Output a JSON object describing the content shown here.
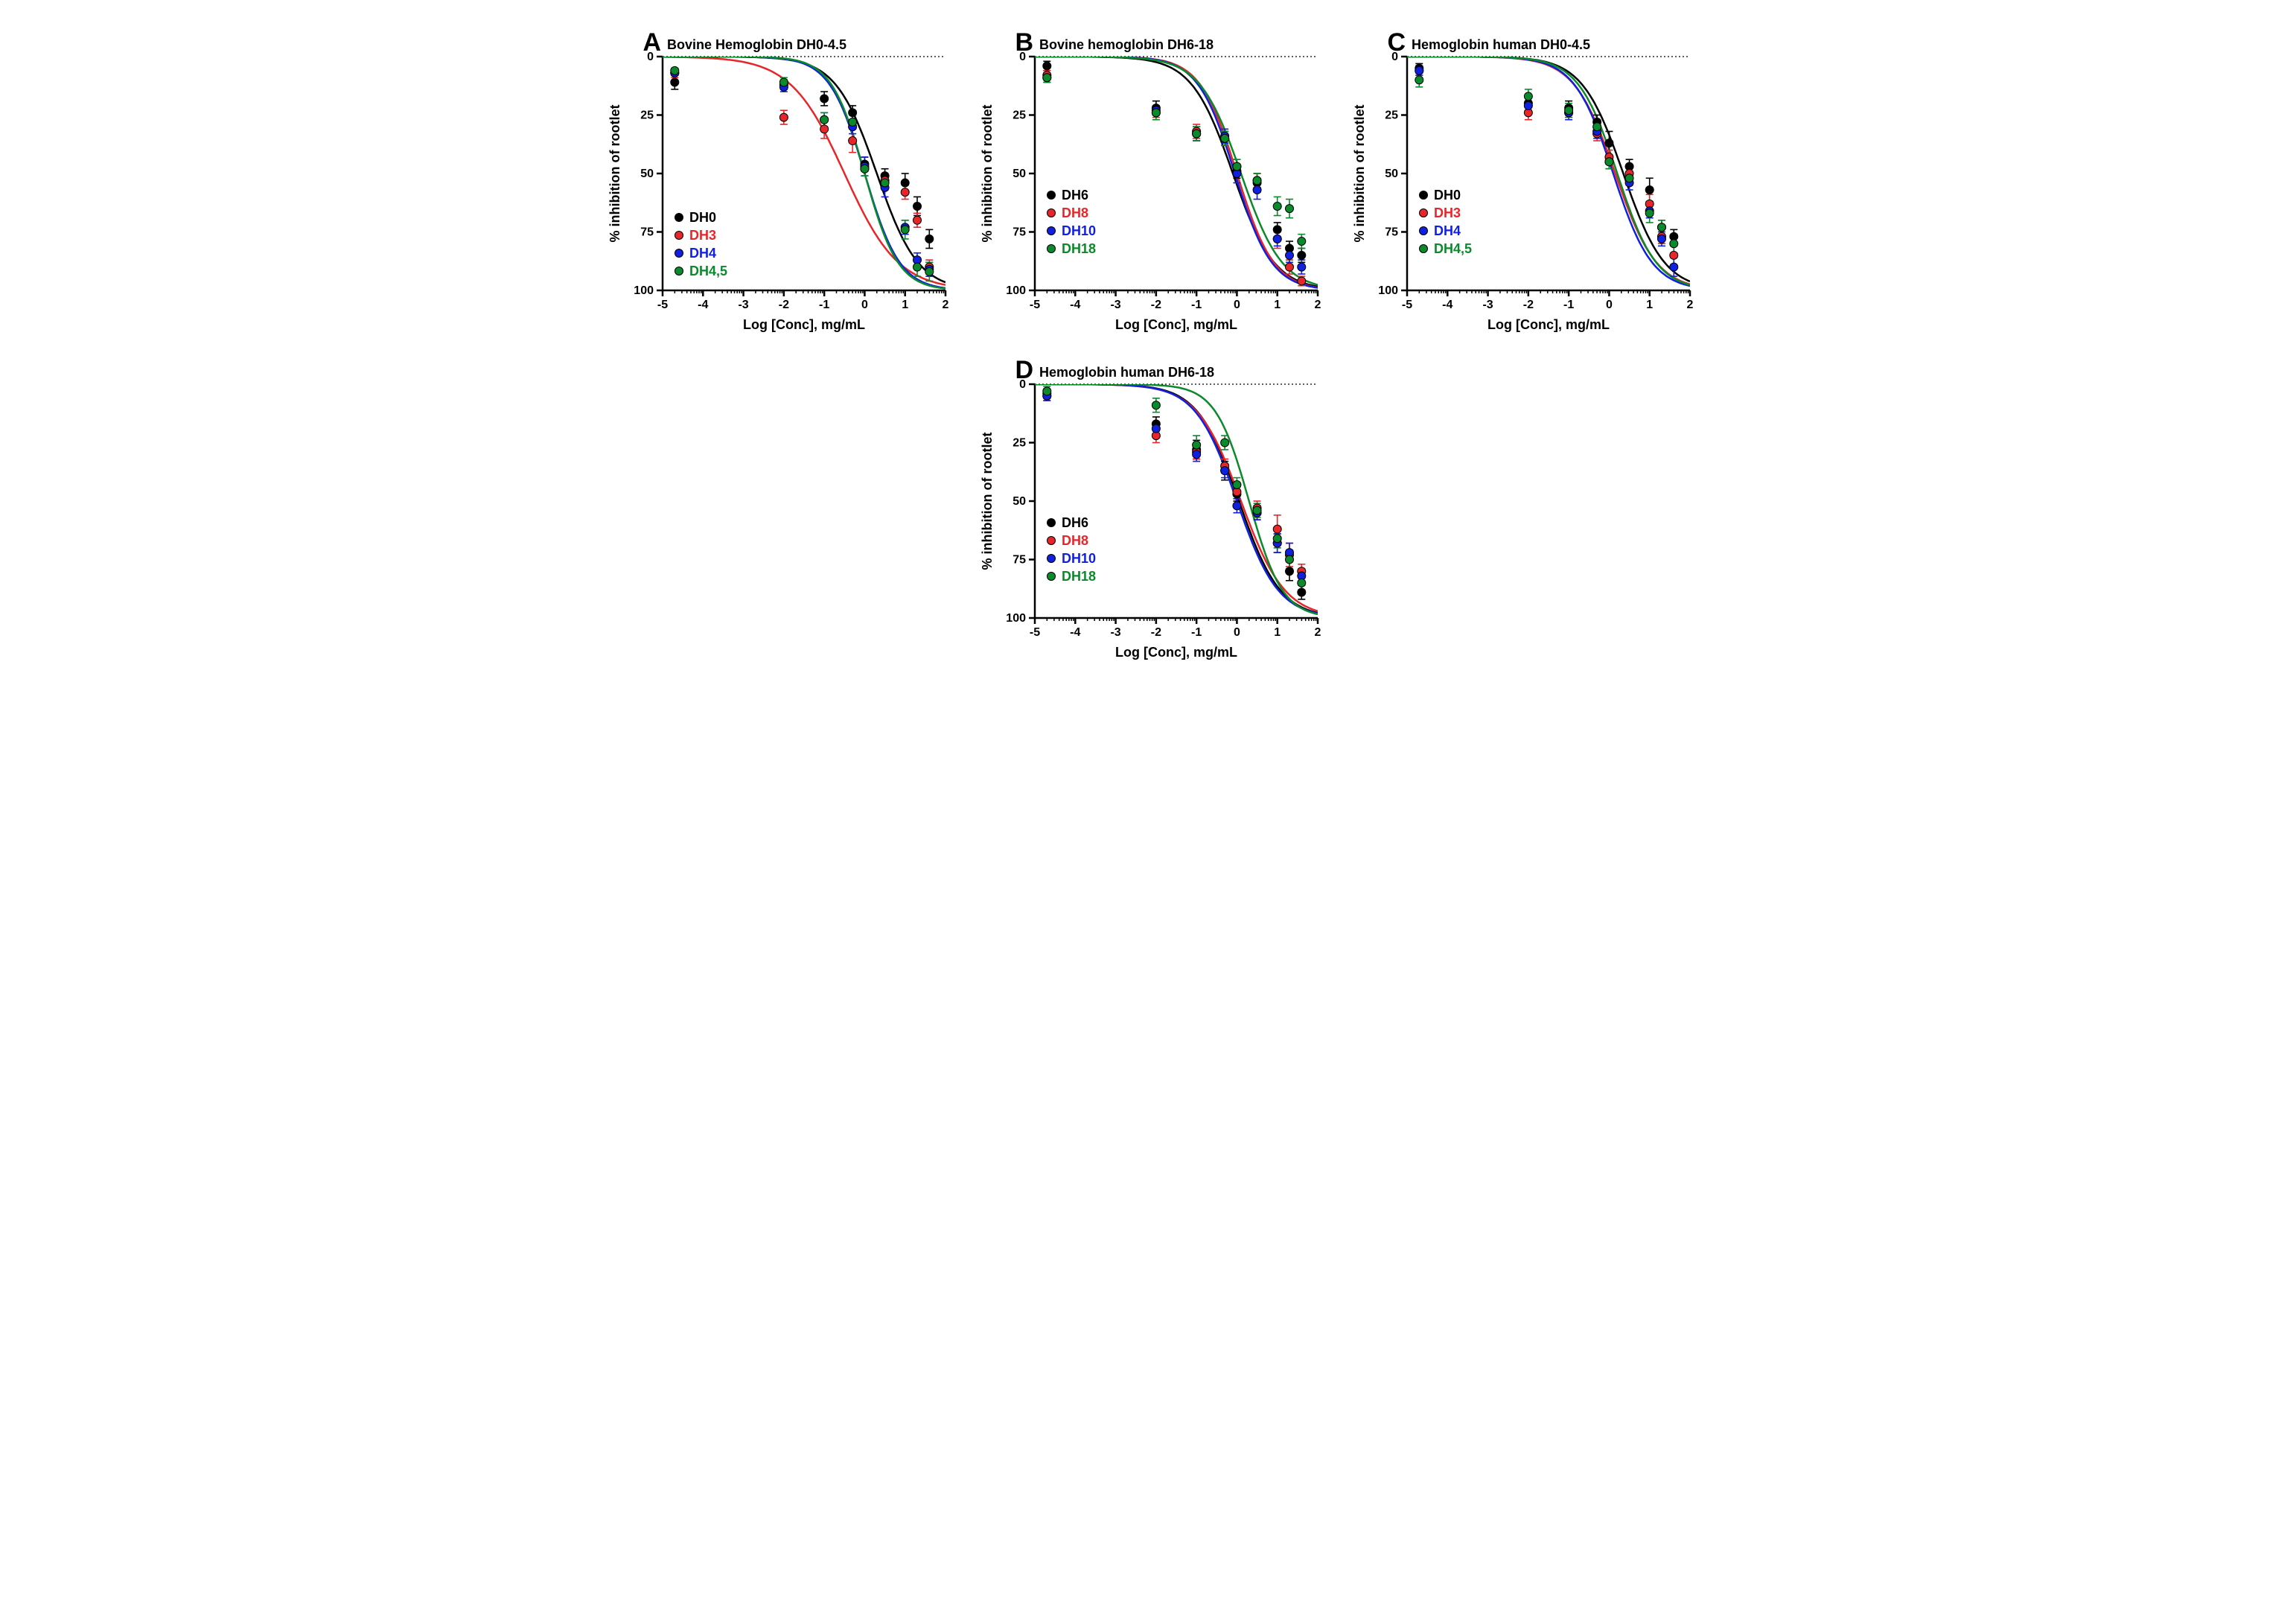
{
  "colors": {
    "black": "#000000",
    "red": "#e8262a",
    "blue": "#1020e0",
    "green": "#0a8a2a",
    "axis": "#000000",
    "grid_dotted": "#000000",
    "bg": "#ffffff"
  },
  "axis_common": {
    "xmin": -5,
    "xmax": 2,
    "ymin": 0,
    "ymax": 100,
    "xlabel": "Log [Conc], mg/mL",
    "ylabel": "% inhibition of rootlet",
    "xtick_step": 1,
    "ytick_step": 25,
    "y_inverted": true,
    "label_fontsize": 18,
    "tick_fontsize": 16,
    "title_fontsize": 18,
    "panel_letter_fontsize": 34,
    "legend_fontsize": 18,
    "marker_radius": 5.5,
    "error_cap": 5,
    "line_width": 2.5,
    "marker_border": 1
  },
  "panels": [
    {
      "id": "A",
      "title": "Bovine Hemoglobin DH0-4.5",
      "legend_pos": "bottom-left",
      "series": [
        {
          "key": "DH0",
          "label": "DH0",
          "color": "black",
          "pts": [
            {
              "x": -4.7,
              "y": 11,
              "e": 3
            },
            {
              "x": -2,
              "y": 12,
              "e": 2
            },
            {
              "x": -1,
              "y": 18,
              "e": 3
            },
            {
              "x": -0.3,
              "y": 24,
              "e": 3
            },
            {
              "x": 0,
              "y": 46,
              "e": 3
            },
            {
              "x": 0.5,
              "y": 51,
              "e": 3
            },
            {
              "x": 1,
              "y": 54,
              "e": 4
            },
            {
              "x": 1.3,
              "y": 64,
              "e": 4
            },
            {
              "x": 1.6,
              "y": 78,
              "e": 4
            }
          ],
          "curve": {
            "top": 0,
            "bottom": 100,
            "ec50": 0.3,
            "hill": 0.85
          }
        },
        {
          "key": "DH3",
          "label": "DH3",
          "color": "red",
          "pts": [
            {
              "x": -4.7,
              "y": 7,
              "e": 2
            },
            {
              "x": -2,
              "y": 26,
              "e": 3
            },
            {
              "x": -1,
              "y": 31,
              "e": 4
            },
            {
              "x": -0.3,
              "y": 36,
              "e": 5
            },
            {
              "x": 0,
              "y": 48,
              "e": 3
            },
            {
              "x": 0.5,
              "y": 53,
              "e": 3
            },
            {
              "x": 1,
              "y": 58,
              "e": 3
            },
            {
              "x": 1.3,
              "y": 70,
              "e": 3
            },
            {
              "x": 1.6,
              "y": 90,
              "e": 3
            }
          ],
          "curve": {
            "top": 0,
            "bottom": 100,
            "ec50": -0.5,
            "hill": 0.65
          }
        },
        {
          "key": "DH4",
          "label": "DH4",
          "color": "blue",
          "pts": [
            {
              "x": -4.7,
              "y": 7,
              "e": 1
            },
            {
              "x": -2,
              "y": 13,
              "e": 2
            },
            {
              "x": -1,
              "y": 27,
              "e": 3
            },
            {
              "x": -0.3,
              "y": 30,
              "e": 3
            },
            {
              "x": 0,
              "y": 47,
              "e": 4
            },
            {
              "x": 0.5,
              "y": 56,
              "e": 4
            },
            {
              "x": 1,
              "y": 73,
              "e": 3
            },
            {
              "x": 1.3,
              "y": 87,
              "e": 3
            },
            {
              "x": 1.6,
              "y": 91,
              "e": 3
            }
          ],
          "curve": {
            "top": 0,
            "bottom": 100,
            "ec50": 0.0,
            "hill": 1.0
          }
        },
        {
          "key": "DH4,5",
          "label": "DH4,5",
          "color": "green",
          "pts": [
            {
              "x": -4.7,
              "y": 6,
              "e": 1
            },
            {
              "x": -2,
              "y": 11,
              "e": 2
            },
            {
              "x": -1,
              "y": 27,
              "e": 3
            },
            {
              "x": -0.3,
              "y": 28,
              "e": 3
            },
            {
              "x": 0,
              "y": 48,
              "e": 3
            },
            {
              "x": 0.5,
              "y": 54,
              "e": 3
            },
            {
              "x": 1,
              "y": 74,
              "e": 4
            },
            {
              "x": 1.3,
              "y": 90,
              "e": 4
            },
            {
              "x": 1.6,
              "y": 92,
              "e": 4
            }
          ],
          "curve": {
            "top": 0,
            "bottom": 100,
            "ec50": 0.0,
            "hill": 1.05
          }
        }
      ]
    },
    {
      "id": "B",
      "title": "Bovine hemoglobin DH6-18",
      "legend_pos": "mid-left",
      "series": [
        {
          "key": "DH6",
          "label": "DH6",
          "color": "black",
          "pts": [
            {
              "x": -4.7,
              "y": 4,
              "e": 2
            },
            {
              "x": -2,
              "y": 22,
              "e": 3
            },
            {
              "x": -1,
              "y": 33,
              "e": 3
            },
            {
              "x": -0.3,
              "y": 35,
              "e": 3
            },
            {
              "x": 0,
              "y": 49,
              "e": 3
            },
            {
              "x": 0.5,
              "y": 54,
              "e": 4
            },
            {
              "x": 1,
              "y": 74,
              "e": 3
            },
            {
              "x": 1.3,
              "y": 82,
              "e": 3
            },
            {
              "x": 1.6,
              "y": 85,
              "e": 3
            }
          ],
          "curve": {
            "top": 0,
            "bottom": 100,
            "ec50": -0.1,
            "hill": 0.85
          }
        },
        {
          "key": "DH8",
          "label": "DH8",
          "color": "red",
          "pts": [
            {
              "x": -4.7,
              "y": 8,
              "e": 2
            },
            {
              "x": -2,
              "y": 24,
              "e": 2
            },
            {
              "x": -1,
              "y": 32,
              "e": 3
            },
            {
              "x": -0.3,
              "y": 35,
              "e": 3
            },
            {
              "x": 0,
              "y": 47,
              "e": 3
            },
            {
              "x": 0.5,
              "y": 53,
              "e": 3
            },
            {
              "x": 1,
              "y": 78,
              "e": 4
            },
            {
              "x": 1.3,
              "y": 90,
              "e": 3
            },
            {
              "x": 1.6,
              "y": 96,
              "e": 2
            }
          ],
          "curve": {
            "top": 0,
            "bottom": 100,
            "ec50": 0.0,
            "hill": 0.95
          }
        },
        {
          "key": "DH10",
          "label": "DH10",
          "color": "blue",
          "pts": [
            {
              "x": -4.7,
              "y": 9,
              "e": 2
            },
            {
              "x": -2,
              "y": 23,
              "e": 2
            },
            {
              "x": -1,
              "y": 33,
              "e": 3
            },
            {
              "x": -0.3,
              "y": 34,
              "e": 3
            },
            {
              "x": 0,
              "y": 50,
              "e": 4
            },
            {
              "x": 0.5,
              "y": 57,
              "e": 4
            },
            {
              "x": 1,
              "y": 78,
              "e": 3
            },
            {
              "x": 1.3,
              "y": 85,
              "e": 3
            },
            {
              "x": 1.6,
              "y": 90,
              "e": 3
            }
          ],
          "curve": {
            "top": 0,
            "bottom": 100,
            "ec50": -0.05,
            "hill": 0.95
          }
        },
        {
          "key": "DH18",
          "label": "DH18",
          "color": "green",
          "pts": [
            {
              "x": -4.7,
              "y": 9,
              "e": 2
            },
            {
              "x": -2,
              "y": 24,
              "e": 3
            },
            {
              "x": -1,
              "y": 33,
              "e": 3
            },
            {
              "x": -0.3,
              "y": 35,
              "e": 3
            },
            {
              "x": 0,
              "y": 47,
              "e": 3
            },
            {
              "x": 0.5,
              "y": 53,
              "e": 3
            },
            {
              "x": 1,
              "y": 64,
              "e": 4
            },
            {
              "x": 1.3,
              "y": 65,
              "e": 4
            },
            {
              "x": 1.6,
              "y": 79,
              "e": 3
            }
          ],
          "curve": {
            "top": 0,
            "bottom": 100,
            "ec50": 0.1,
            "hill": 0.85
          }
        }
      ]
    },
    {
      "id": "C",
      "title": "Hemoglobin human DH0-4.5",
      "legend_pos": "mid-left",
      "series": [
        {
          "key": "DH0",
          "label": "DH0",
          "color": "black",
          "pts": [
            {
              "x": -4.7,
              "y": 5,
              "e": 2
            },
            {
              "x": -2,
              "y": 20,
              "e": 3
            },
            {
              "x": -1,
              "y": 22,
              "e": 3
            },
            {
              "x": -0.3,
              "y": 28,
              "e": 3
            },
            {
              "x": 0,
              "y": 37,
              "e": 5
            },
            {
              "x": 0.5,
              "y": 47,
              "e": 3
            },
            {
              "x": 1,
              "y": 57,
              "e": 5
            },
            {
              "x": 1.3,
              "y": 73,
              "e": 3
            },
            {
              "x": 1.6,
              "y": 77,
              "e": 3
            }
          ],
          "curve": {
            "top": 0,
            "bottom": 100,
            "ec50": 0.35,
            "hill": 0.85
          }
        },
        {
          "key": "DH3",
          "label": "DH3",
          "color": "red",
          "pts": [
            {
              "x": -4.7,
              "y": 6,
              "e": 2
            },
            {
              "x": -2,
              "y": 24,
              "e": 3
            },
            {
              "x": -1,
              "y": 24,
              "e": 2
            },
            {
              "x": -0.3,
              "y": 33,
              "e": 3
            },
            {
              "x": 0,
              "y": 43,
              "e": 3
            },
            {
              "x": 0.5,
              "y": 50,
              "e": 3
            },
            {
              "x": 1,
              "y": 63,
              "e": 4
            },
            {
              "x": 1.3,
              "y": 77,
              "e": 3
            },
            {
              "x": 1.6,
              "y": 85,
              "e": 4
            }
          ],
          "curve": {
            "top": 0,
            "bottom": 100,
            "ec50": 0.15,
            "hill": 0.85
          }
        },
        {
          "key": "DH4",
          "label": "DH4",
          "color": "blue",
          "pts": [
            {
              "x": -4.7,
              "y": 6,
              "e": 2
            },
            {
              "x": -2,
              "y": 21,
              "e": 2
            },
            {
              "x": -1,
              "y": 24,
              "e": 3
            },
            {
              "x": -0.3,
              "y": 32,
              "e": 3
            },
            {
              "x": 0,
              "y": 45,
              "e": 3
            },
            {
              "x": 0.5,
              "y": 54,
              "e": 3
            },
            {
              "x": 1,
              "y": 66,
              "e": 3
            },
            {
              "x": 1.3,
              "y": 78,
              "e": 3
            },
            {
              "x": 1.6,
              "y": 90,
              "e": 4
            }
          ],
          "curve": {
            "top": 0,
            "bottom": 100,
            "ec50": 0.1,
            "hill": 0.9
          }
        },
        {
          "key": "DH4,5",
          "label": "DH4,5",
          "color": "green",
          "pts": [
            {
              "x": -4.7,
              "y": 10,
              "e": 3
            },
            {
              "x": -2,
              "y": 17,
              "e": 3
            },
            {
              "x": -1,
              "y": 23,
              "e": 3
            },
            {
              "x": -0.3,
              "y": 30,
              "e": 3
            },
            {
              "x": 0,
              "y": 45,
              "e": 3
            },
            {
              "x": 0.5,
              "y": 52,
              "e": 3
            },
            {
              "x": 1,
              "y": 67,
              "e": 4
            },
            {
              "x": 1.3,
              "y": 73,
              "e": 3
            },
            {
              "x": 1.6,
              "y": 80,
              "e": 4
            }
          ],
          "curve": {
            "top": 0,
            "bottom": 100,
            "ec50": 0.2,
            "hill": 0.9
          }
        }
      ]
    },
    {
      "id": "D",
      "title": "Hemoglobin human DH6-18",
      "legend_pos": "mid-left",
      "series": [
        {
          "key": "DH6",
          "label": "DH6",
          "color": "black",
          "pts": [
            {
              "x": -4.7,
              "y": 4,
              "e": 2
            },
            {
              "x": -2,
              "y": 17,
              "e": 3
            },
            {
              "x": -1,
              "y": 28,
              "e": 4
            },
            {
              "x": -0.3,
              "y": 37,
              "e": 4
            },
            {
              "x": 0,
              "y": 47,
              "e": 3
            },
            {
              "x": 0.5,
              "y": 55,
              "e": 3
            },
            {
              "x": 1,
              "y": 68,
              "e": 4
            },
            {
              "x": 1.3,
              "y": 80,
              "e": 4
            },
            {
              "x": 1.6,
              "y": 89,
              "e": 3
            }
          ],
          "curve": {
            "top": 0,
            "bottom": 100,
            "ec50": 0.05,
            "hill": 0.85
          }
        },
        {
          "key": "DH8",
          "label": "DH8",
          "color": "red",
          "pts": [
            {
              "x": -4.7,
              "y": 5,
              "e": 2
            },
            {
              "x": -2,
              "y": 22,
              "e": 3
            },
            {
              "x": -1,
              "y": 29,
              "e": 3
            },
            {
              "x": -0.3,
              "y": 35,
              "e": 3
            },
            {
              "x": 0,
              "y": 46,
              "e": 3
            },
            {
              "x": 0.5,
              "y": 53,
              "e": 3
            },
            {
              "x": 1,
              "y": 62,
              "e": 6
            },
            {
              "x": 1.3,
              "y": 73,
              "e": 5
            },
            {
              "x": 1.6,
              "y": 80,
              "e": 3
            }
          ],
          "curve": {
            "top": 0,
            "bottom": 100,
            "ec50": 0.1,
            "hill": 0.8
          }
        },
        {
          "key": "DH10",
          "label": "DH10",
          "color": "blue",
          "pts": [
            {
              "x": -4.7,
              "y": 5,
              "e": 2
            },
            {
              "x": -2,
              "y": 19,
              "e": 2
            },
            {
              "x": -1,
              "y": 30,
              "e": 3
            },
            {
              "x": -0.3,
              "y": 37,
              "e": 3
            },
            {
              "x": 0,
              "y": 52,
              "e": 3
            },
            {
              "x": 0.5,
              "y": 55,
              "e": 3
            },
            {
              "x": 1,
              "y": 68,
              "e": 4
            },
            {
              "x": 1.3,
              "y": 72,
              "e": 4
            },
            {
              "x": 1.6,
              "y": 82,
              "e": 3
            }
          ],
          "curve": {
            "top": 0,
            "bottom": 100,
            "ec50": 0.0,
            "hill": 0.85
          }
        },
        {
          "key": "DH18",
          "label": "DH18",
          "color": "green",
          "pts": [
            {
              "x": -4.7,
              "y": 3,
              "e": 2
            },
            {
              "x": -2,
              "y": 9,
              "e": 3
            },
            {
              "x": -1,
              "y": 26,
              "e": 4
            },
            {
              "x": -0.3,
              "y": 25,
              "e": 3
            },
            {
              "x": 0,
              "y": 43,
              "e": 3
            },
            {
              "x": 0.5,
              "y": 54,
              "e": 3
            },
            {
              "x": 1,
              "y": 66,
              "e": 4
            },
            {
              "x": 1.3,
              "y": 75,
              "e": 4
            },
            {
              "x": 1.6,
              "y": 85,
              "e": 3
            }
          ],
          "curve": {
            "top": 0,
            "bottom": 100,
            "ec50": 0.3,
            "hill": 1.05
          }
        }
      ]
    }
  ]
}
